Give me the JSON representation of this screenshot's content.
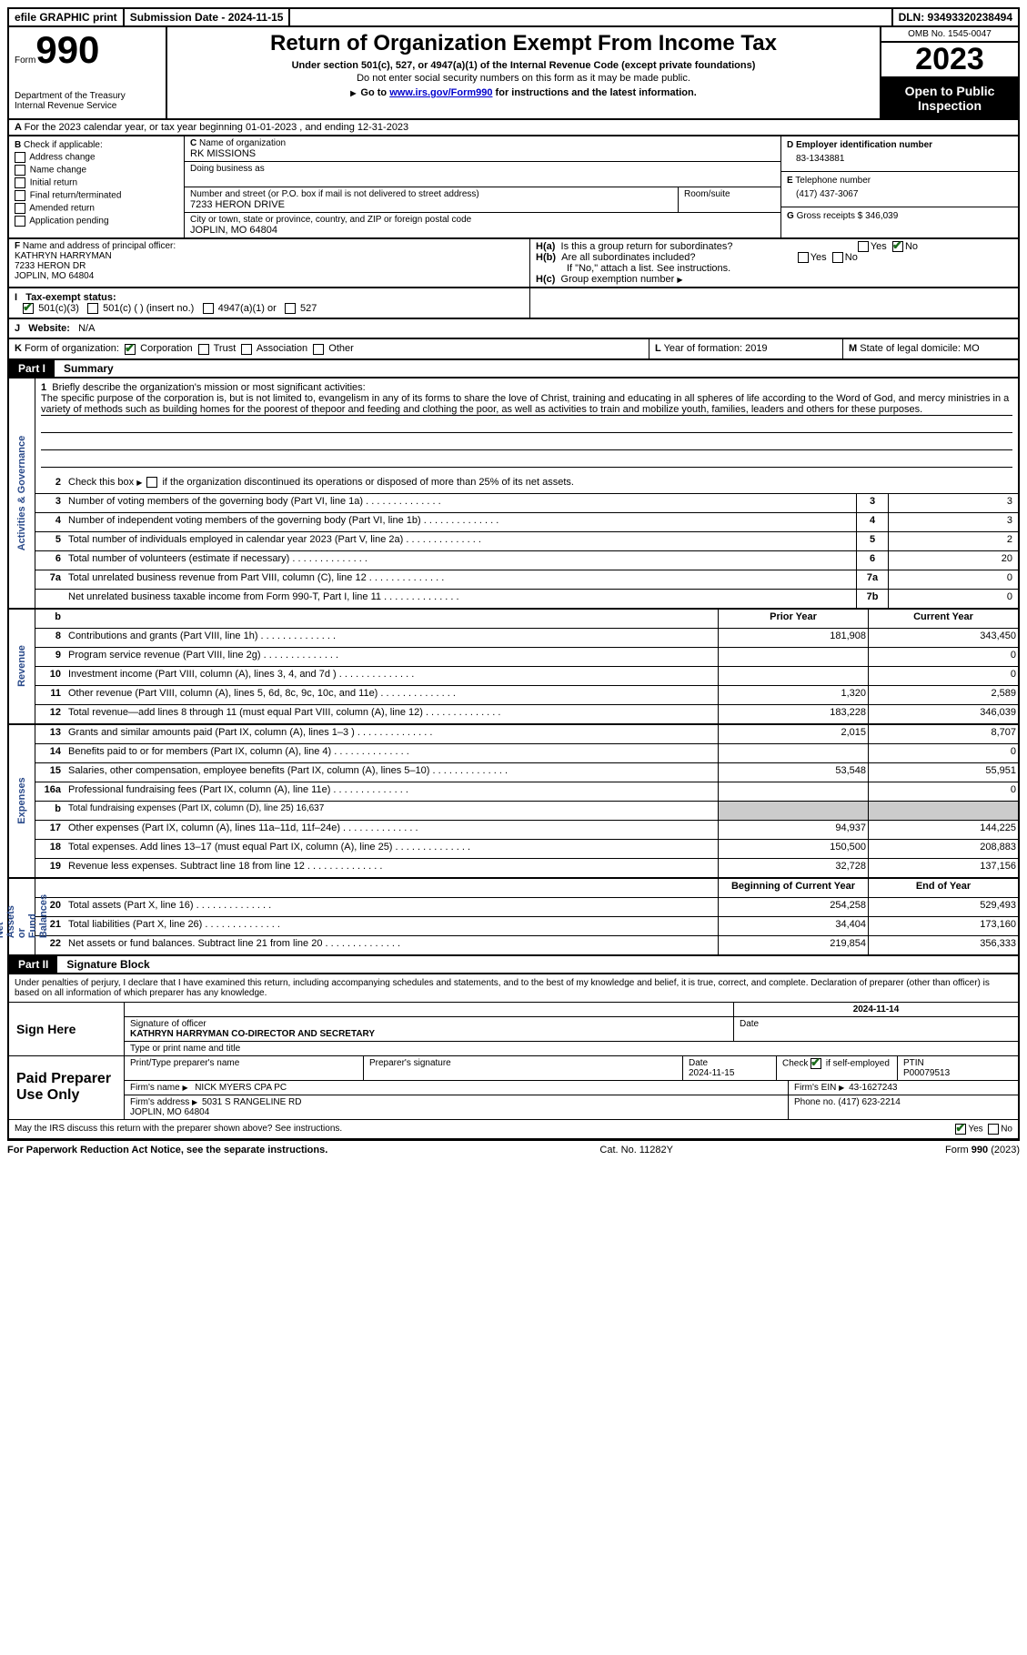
{
  "top": {
    "efile": "efile GRAPHIC print",
    "submission": "Submission Date - 2024-11-15",
    "dln": "DLN: 93493320238494"
  },
  "header": {
    "form_word": "Form",
    "form_number": "990",
    "dept": "Department of the Treasury\nInternal Revenue Service",
    "title": "Return of Organization Exempt From Income Tax",
    "sub1": "Under section 501(c), 527, or 4947(a)(1) of the Internal Revenue Code (except private foundations)",
    "sub2": "Do not enter social security numbers on this form as it may be made public.",
    "sub3_pre": "Go to ",
    "sub3_link": "www.irs.gov/Form990",
    "sub3_post": " for instructions and the latest information.",
    "omb": "OMB No. 1545-0047",
    "year": "2023",
    "open": "Open to Public Inspection"
  },
  "A": "For the 2023 calendar year, or tax year beginning 01-01-2023   , and ending 12-31-2023",
  "B": {
    "label": "Check if applicable:",
    "opts": [
      "Address change",
      "Name change",
      "Initial return",
      "Final return/terminated",
      "Amended return",
      "Application pending"
    ]
  },
  "C": {
    "name_lbl": "Name of organization",
    "name": "RK MISSIONS",
    "dba_lbl": "Doing business as",
    "street_lbl": "Number and street (or P.O. box if mail is not delivered to street address)",
    "street": "7233 HERON DRIVE",
    "room_lbl": "Room/suite",
    "city_lbl": "City or town, state or province, country, and ZIP or foreign postal code",
    "city": "JOPLIN, MO  64804"
  },
  "D": {
    "lbl": "Employer identification number",
    "val": "83-1343881"
  },
  "E": {
    "lbl": "Telephone number",
    "val": "(417) 437-3067"
  },
  "G": {
    "lbl": "Gross receipts $",
    "val": "346,039"
  },
  "F": {
    "lbl": "Name and address of principal officer:",
    "name": "KATHRYN HARRYMAN",
    "street": "7233 HERON DR",
    "city": "JOPLIN, MO  64804"
  },
  "H": {
    "a_lbl": "Is this a group return for subordinates?",
    "a_yes": "Yes",
    "a_no": "No",
    "b_lbl": "Are all subordinates included?",
    "b_note": "If \"No,\" attach a list. See instructions.",
    "c_lbl": "Group exemption number"
  },
  "I": {
    "lbl": "Tax-exempt status:",
    "o1": "501(c)(3)",
    "o2": "501(c) (  ) (insert no.)",
    "o3": "4947(a)(1) or",
    "o4": "527"
  },
  "J": {
    "lbl": "Website:",
    "val": "N/A"
  },
  "K": {
    "lbl": "Form of organization:",
    "o1": "Corporation",
    "o2": "Trust",
    "o3": "Association",
    "o4": "Other"
  },
  "L": {
    "lbl": "Year of formation:",
    "val": "2019"
  },
  "M": {
    "lbl": "State of legal domicile:",
    "val": "MO"
  },
  "part1": {
    "num": "Part I",
    "title": "Summary"
  },
  "vlabels": {
    "ag": "Activities & Governance",
    "rev": "Revenue",
    "exp": "Expenses",
    "na": "Net Assets or\nFund Balances"
  },
  "mission_lbl": "Briefly describe the organization's mission or most significant activities:",
  "mission": "The specific purpose of the corporation is, but is not limited to, evangelism in any of its forms to share the love of Christ, training and educating in all spheres of life according to the Word of God, and mercy ministries in a variety of methods such as building homes for the poorest of thepoor and feeding and clothing the poor, as well as activities to train and mobilize youth, families, leaders and others for these purposes.",
  "line2": "Check this box      if the organization discontinued its operations or disposed of more than 25% of its net assets.",
  "lines_ag": [
    {
      "n": "3",
      "t": "Number of voting members of the governing body (Part VI, line 1a)",
      "bn": "3",
      "v": "3"
    },
    {
      "n": "4",
      "t": "Number of independent voting members of the governing body (Part VI, line 1b)",
      "bn": "4",
      "v": "3"
    },
    {
      "n": "5",
      "t": "Total number of individuals employed in calendar year 2023 (Part V, line 2a)",
      "bn": "5",
      "v": "2"
    },
    {
      "n": "6",
      "t": "Total number of volunteers (estimate if necessary)",
      "bn": "6",
      "v": "20"
    },
    {
      "n": "7a",
      "t": "Total unrelated business revenue from Part VIII, column (C), line 12",
      "bn": "7a",
      "v": "0"
    },
    {
      "n": "",
      "t": "Net unrelated business taxable income from Form 990-T, Part I, line 11",
      "bn": "7b",
      "v": "0"
    }
  ],
  "colhdr": {
    "prior": "Prior Year",
    "curr": "Current Year"
  },
  "lines_rev": [
    {
      "n": "8",
      "t": "Contributions and grants (Part VIII, line 1h)",
      "p": "181,908",
      "c": "343,450"
    },
    {
      "n": "9",
      "t": "Program service revenue (Part VIII, line 2g)",
      "p": "",
      "c": "0"
    },
    {
      "n": "10",
      "t": "Investment income (Part VIII, column (A), lines 3, 4, and 7d )",
      "p": "",
      "c": "0"
    },
    {
      "n": "11",
      "t": "Other revenue (Part VIII, column (A), lines 5, 6d, 8c, 9c, 10c, and 11e)",
      "p": "1,320",
      "c": "2,589"
    },
    {
      "n": "12",
      "t": "Total revenue—add lines 8 through 11 (must equal Part VIII, column (A), line 12)",
      "p": "183,228",
      "c": "346,039"
    }
  ],
  "lines_exp": [
    {
      "n": "13",
      "t": "Grants and similar amounts paid (Part IX, column (A), lines 1–3 )",
      "p": "2,015",
      "c": "8,707"
    },
    {
      "n": "14",
      "t": "Benefits paid to or for members (Part IX, column (A), line 4)",
      "p": "",
      "c": "0"
    },
    {
      "n": "15",
      "t": "Salaries, other compensation, employee benefits (Part IX, column (A), lines 5–10)",
      "p": "53,548",
      "c": "55,951"
    },
    {
      "n": "16a",
      "t": "Professional fundraising fees (Part IX, column (A), line 11e)",
      "p": "",
      "c": "0"
    },
    {
      "n": "b",
      "t": "Total fundraising expenses (Part IX, column (D), line 25) 16,637",
      "gray": true
    },
    {
      "n": "17",
      "t": "Other expenses (Part IX, column (A), lines 11a–11d, 11f–24e)",
      "p": "94,937",
      "c": "144,225"
    },
    {
      "n": "18",
      "t": "Total expenses. Add lines 13–17 (must equal Part IX, column (A), line 25)",
      "p": "150,500",
      "c": "208,883"
    },
    {
      "n": "19",
      "t": "Revenue less expenses. Subtract line 18 from line 12",
      "p": "32,728",
      "c": "137,156"
    }
  ],
  "colhdr2": {
    "beg": "Beginning of Current Year",
    "end": "End of Year"
  },
  "lines_na": [
    {
      "n": "20",
      "t": "Total assets (Part X, line 16)",
      "p": "254,258",
      "c": "529,493"
    },
    {
      "n": "21",
      "t": "Total liabilities (Part X, line 26)",
      "p": "34,404",
      "c": "173,160"
    },
    {
      "n": "22",
      "t": "Net assets or fund balances. Subtract line 21 from line 20",
      "p": "219,854",
      "c": "356,333"
    }
  ],
  "part2": {
    "num": "Part II",
    "title": "Signature Block"
  },
  "penalty": "Under penalties of perjury, I declare that I have examined this return, including accompanying schedules and statements, and to the best of my knowledge and belief, it is true, correct, and complete. Declaration of preparer (other than officer) is based on all information of which preparer has any knowledge.",
  "sign": {
    "here": "Sign Here",
    "sigoff_lbl": "Signature of officer",
    "date_lbl": "Date",
    "date_sig": "2024-11-14",
    "officer": "KATHRYN HARRYMAN  CO-DIRECTOR AND SECRETARY",
    "type_lbl": "Type or print name and title"
  },
  "paid": {
    "lbl": "Paid Preparer Use Only",
    "c1": "Print/Type preparer's name",
    "c2": "Preparer's signature",
    "c3": "Date",
    "c3v": "2024-11-15",
    "c4": "Check      if self-employed",
    "c5": "PTIN",
    "c5v": "P00079513",
    "firm_lbl": "Firm's name",
    "firm": "NICK MYERS CPA PC",
    "ein_lbl": "Firm's EIN",
    "ein": "43-1627243",
    "addr_lbl": "Firm's address",
    "addr": "5031 S RANGELINE RD\nJOPLIN, MO  64804",
    "phone_lbl": "Phone no.",
    "phone": "(417) 623-2214"
  },
  "discuss": "May the IRS discuss this return with the preparer shown above? See instructions.",
  "yes": "Yes",
  "no": "No",
  "footer": {
    "l": "For Paperwork Reduction Act Notice, see the separate instructions.",
    "m": "Cat. No. 11282Y",
    "r": "Form 990 (2023)"
  }
}
